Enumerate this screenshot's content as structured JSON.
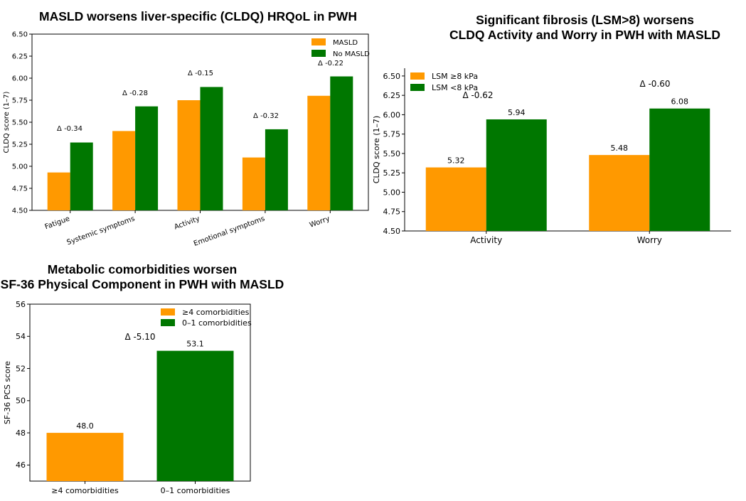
{
  "colors": {
    "orange": "#ff9900",
    "green": "#007700"
  },
  "chart_data": [
    {
      "type": "bar",
      "title": "MASLD worsens liver-specific (CLDQ) HRQoL in PWH",
      "xlabel": "",
      "ylabel": "CLDQ score (1–7)",
      "ylim": [
        4.5,
        6.5
      ],
      "yticks": [
        "4.50",
        "4.75",
        "5.00",
        "5.25",
        "5.50",
        "5.75",
        "6.00",
        "6.25",
        "6.50"
      ],
      "categories": [
        "Fatigue",
        "Systemic symptoms",
        "Activity",
        "Emotional symptoms",
        "Worry"
      ],
      "series": [
        {
          "name": "MASLD",
          "color": "#ff9900",
          "values": [
            4.93,
            5.4,
            5.75,
            5.1,
            5.8
          ]
        },
        {
          "name": "No MASLD",
          "color": "#007700",
          "values": [
            5.27,
            5.68,
            5.9,
            5.42,
            6.02
          ]
        }
      ],
      "annotations": [
        "Δ -0.34",
        "Δ -0.28",
        "Δ -0.15",
        "Δ -0.32",
        "Δ -0.22"
      ],
      "legend": "top-right",
      "grid": false
    },
    {
      "type": "bar",
      "title": "Significant fibrosis (LSM>8) worsens\nCLDQ Activity and Worry in PWH with MASLD",
      "xlabel": "",
      "ylabel": "CLDQ score (1–7)",
      "ylim": [
        4.5,
        6.6
      ],
      "yticks": [
        "4.50",
        "4.75",
        "5.00",
        "5.25",
        "5.50",
        "5.75",
        "6.00",
        "6.25",
        "6.50"
      ],
      "categories": [
        "Activity",
        "Worry"
      ],
      "series": [
        {
          "name": "LSM ≥8 kPa",
          "color": "#ff9900",
          "values": [
            5.32,
            5.48
          ],
          "labels": [
            "5.32",
            "5.48"
          ]
        },
        {
          "name": "LSM <8 kPa",
          "color": "#007700",
          "values": [
            5.94,
            6.08
          ],
          "labels": [
            "5.94",
            "6.08"
          ]
        }
      ],
      "annotations": [
        "Δ -0.62",
        "Δ -0.60"
      ],
      "legend": "top-left",
      "grid": false
    },
    {
      "type": "bar",
      "title": "Metabolic comorbidities worsen\nSF-36 Physical Component in PWH with MASLD",
      "xlabel": "",
      "ylabel": "SF-36 PCS score",
      "ylim": [
        45,
        56
      ],
      "yticks": [
        "46",
        "48",
        "50",
        "52",
        "54",
        "56"
      ],
      "categories": [
        "≥4 comorbidities",
        "0–1 comorbidities"
      ],
      "series": [
        {
          "name": "≥4 comorbidities",
          "color": "#ff9900",
          "values": [
            48.0,
            null
          ],
          "labels": [
            "48.0",
            ""
          ]
        },
        {
          "name": "0–1 comorbidities",
          "color": "#007700",
          "values": [
            null,
            53.1
          ],
          "labels": [
            "",
            "53.1"
          ]
        }
      ],
      "annotations": [
        "Δ -5.10"
      ],
      "legend": "top-right",
      "grid": false
    }
  ]
}
